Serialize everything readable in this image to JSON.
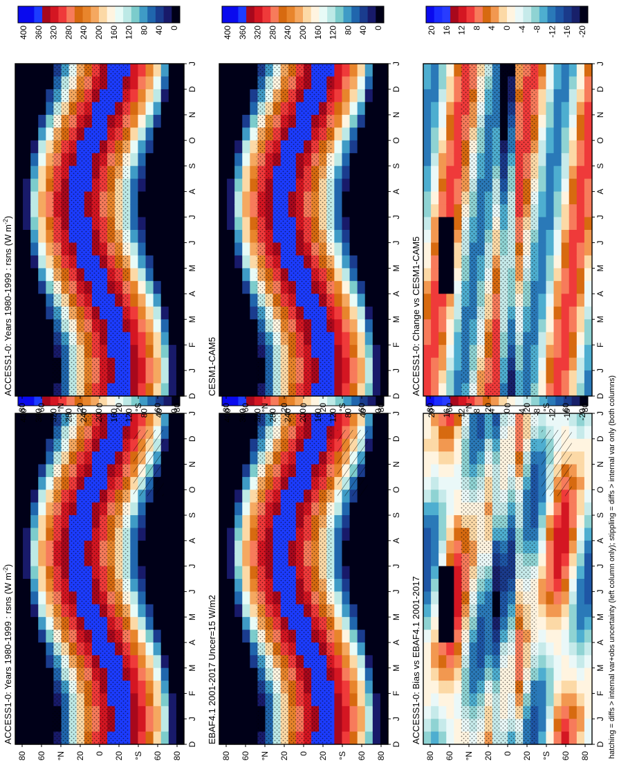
{
  "figure_note": "hatching = diffs > internal var+obs uncertainty (left column only); stippling = diffs > internal var only (both columns)",
  "colors": {
    "abs_scale": [
      "#0a0aee",
      "#0a0aee",
      "#1c3cff",
      "#a8081c",
      "#d41622",
      "#ef3a3a",
      "#f77b5b",
      "#d76a10",
      "#e8852c",
      "#f5a860",
      "#fcd9a6",
      "#fff4e0",
      "#e8fbf7",
      "#bde9e6",
      "#7ccccc",
      "#3f9bc6",
      "#2066ad",
      "#1a3c8e",
      "#181a6a",
      "#000018"
    ],
    "diff_scale": [
      "#0a0aee",
      "#1a2cff",
      "#283cff",
      "#a8081c",
      "#d41622",
      "#ef3a3a",
      "#f77b5b",
      "#d76a10",
      "#f29850",
      "#fcd9a6",
      "#fff4e0",
      "#eaf8f8",
      "#c6eaea",
      "#8fd3d3",
      "#4eaed0",
      "#2a79b8",
      "#1e56a5",
      "#1a3a8a",
      "#18206a",
      "#000018"
    ]
  },
  "chart_data": [
    {
      "id": "p1",
      "type": "heatmap",
      "title": "ACCESS1-0: Years 1980-1999 : rsns (W m",
      "title_sup": "-2",
      "title_end": ")",
      "xlabel": "",
      "ylabel": "",
      "x_ticks": [
        "D",
        "J",
        "F",
        "M",
        "A",
        "M",
        "J",
        "J",
        "A",
        "S",
        "O",
        "N",
        "D",
        "J"
      ],
      "y_ticks": [
        "80",
        "60",
        "°N",
        "20",
        "0",
        "20",
        "°S",
        "60",
        "80"
      ],
      "colorbar": {
        "labels": [
          "400",
          "360",
          "320",
          "280",
          "240",
          "200",
          "160",
          "120",
          "80",
          "40",
          "0"
        ],
        "range": [
          0,
          400
        ]
      },
      "field": "abs",
      "hatching": true,
      "stippling": true
    },
    {
      "id": "p2",
      "type": "heatmap",
      "title": "ACCESS1-0: Years 1980-1999 : rsns (W m",
      "title_sup": "-2",
      "title_end": ")",
      "x_ticks": [
        "D",
        "J",
        "F",
        "M",
        "A",
        "M",
        "J",
        "J",
        "A",
        "S",
        "O",
        "N",
        "D",
        "J"
      ],
      "y_ticks": [
        "80",
        "60",
        "°N",
        "20",
        "0",
        "20",
        "°S",
        "60",
        "80"
      ],
      "colorbar": {
        "labels": [
          "400",
          "360",
          "320",
          "280",
          "240",
          "200",
          "160",
          "120",
          "80",
          "40",
          "0"
        ],
        "range": [
          0,
          400
        ]
      },
      "field": "abs",
      "hatching": false,
      "stippling": true
    },
    {
      "id": "p3",
      "type": "heatmap",
      "title": "EBAF4.1 2001-2017 Uncer=15 W/m2",
      "x_ticks": [
        "D",
        "J",
        "F",
        "M",
        "A",
        "M",
        "J",
        "J",
        "A",
        "S",
        "O",
        "N",
        "D",
        "J"
      ],
      "y_ticks": [
        "80",
        "60",
        "°N",
        "20",
        "0",
        "20",
        "°S",
        "60",
        "80"
      ],
      "colorbar": {
        "labels": [
          "400",
          "360",
          "320",
          "280",
          "240",
          "200",
          "160",
          "120",
          "80",
          "40",
          "0"
        ],
        "range": [
          0,
          400
        ]
      },
      "field": "abs",
      "hatching": true,
      "stippling": true
    },
    {
      "id": "p4",
      "type": "heatmap",
      "title": "CESM1-CAM5",
      "x_ticks": [
        "D",
        "J",
        "F",
        "M",
        "A",
        "M",
        "J",
        "J",
        "A",
        "S",
        "O",
        "N",
        "D",
        "J"
      ],
      "y_ticks": [
        "80",
        "60",
        "°N",
        "20",
        "0",
        "20",
        "°S",
        "60",
        "80"
      ],
      "colorbar": {
        "labels": [
          "400",
          "360",
          "320",
          "280",
          "240",
          "200",
          "160",
          "120",
          "80",
          "40",
          "0"
        ],
        "range": [
          0,
          400
        ]
      },
      "field": "abs",
      "hatching": false,
      "stippling": true
    },
    {
      "id": "p5",
      "type": "heatmap",
      "title": "ACCESS1-0: Bias vs EBAF4.1 2001-2017",
      "x_ticks": [
        "D",
        "J",
        "F",
        "M",
        "A",
        "M",
        "J",
        "J",
        "A",
        "S",
        "O",
        "N",
        "D",
        "J"
      ],
      "y_ticks": [
        "80",
        "60",
        "°N",
        "20",
        "0",
        "20",
        "°S",
        "60",
        "80"
      ],
      "colorbar": {
        "labels": [
          "20",
          "16",
          "12",
          "8",
          "4",
          "0",
          "-4",
          "-8",
          "-12",
          "-16",
          "-20"
        ],
        "range": [
          -20,
          20
        ]
      },
      "field": "diff",
      "hatching": true,
      "stippling": true
    },
    {
      "id": "p6",
      "type": "heatmap",
      "title": "ACCESS1-0: Change vs CESM1-CAM5",
      "x_ticks": [
        "D",
        "J",
        "F",
        "M",
        "A",
        "M",
        "J",
        "J",
        "A",
        "S",
        "O",
        "N",
        "D",
        "J"
      ],
      "y_ticks": [
        "80",
        "60",
        "°N",
        "20",
        "0",
        "20",
        "°S",
        "60",
        "80"
      ],
      "colorbar": {
        "labels": [
          "20",
          "16",
          "12",
          "8",
          "4",
          "0",
          "-4",
          "-8",
          "-12",
          "-16",
          "-20"
        ],
        "range": [
          -20,
          20
        ]
      },
      "field": "diff2",
      "hatching": false,
      "stippling": true
    }
  ]
}
